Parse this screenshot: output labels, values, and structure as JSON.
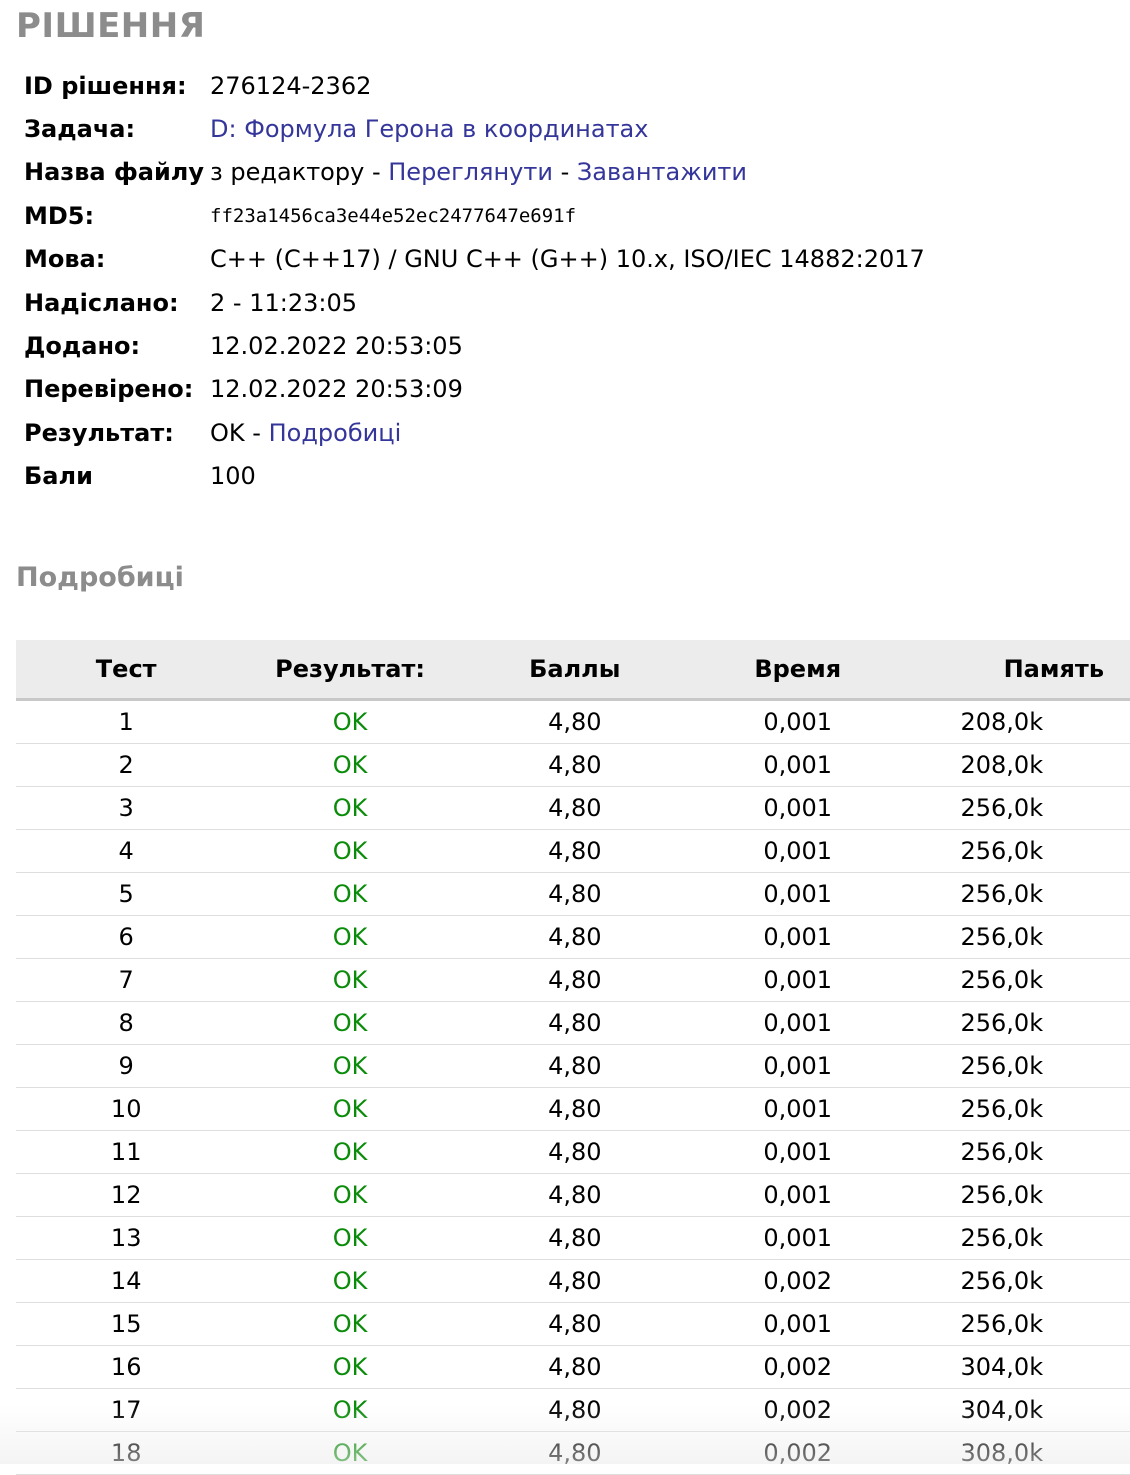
{
  "page_title": "РІШЕННЯ",
  "info": {
    "id_label": "ID рішення:",
    "id_value": "276124-2362",
    "task_label": "Задача:",
    "task_link": "D: Формула Герона в координатах",
    "file_label": "Назва файлу",
    "file_source": "з редактору",
    "separator": "-",
    "view_link": "Переглянути",
    "download_link": "Завантажити",
    "md5_label": "MD5:",
    "md5_value": "ff23a1456ca3e44e52ec2477647e691f",
    "lang_label": "Мова:",
    "lang_value": "C++ (C++17) / GNU C++ (G++) 10.x, ISO/IEC 14882:2017",
    "sent_label": "Надіслано:",
    "sent_value": "2 - 11:23:05",
    "added_label": "Додано:",
    "added_value": "12.02.2022 20:53:05",
    "checked_label": "Перевірено:",
    "checked_value": "12.02.2022 20:53:09",
    "result_label": "Результат:",
    "result_value": "OK",
    "details_link": "Подробиці",
    "score_label": "Бали",
    "score_value": "100"
  },
  "details_title": "Подробиці",
  "table": {
    "headers": [
      "Тест",
      "Результат:",
      "Баллы",
      "Время",
      "Память"
    ],
    "rows": [
      [
        "1",
        "OK",
        "4,80",
        "0,001",
        "208,0k"
      ],
      [
        "2",
        "OK",
        "4,80",
        "0,001",
        "208,0k"
      ],
      [
        "3",
        "OK",
        "4,80",
        "0,001",
        "256,0k"
      ],
      [
        "4",
        "OK",
        "4,80",
        "0,001",
        "256,0k"
      ],
      [
        "5",
        "OK",
        "4,80",
        "0,001",
        "256,0k"
      ],
      [
        "6",
        "OK",
        "4,80",
        "0,001",
        "256,0k"
      ],
      [
        "7",
        "OK",
        "4,80",
        "0,001",
        "256,0k"
      ],
      [
        "8",
        "OK",
        "4,80",
        "0,001",
        "256,0k"
      ],
      [
        "9",
        "OK",
        "4,80",
        "0,001",
        "256,0k"
      ],
      [
        "10",
        "OK",
        "4,80",
        "0,001",
        "256,0k"
      ],
      [
        "11",
        "OK",
        "4,80",
        "0,001",
        "256,0k"
      ],
      [
        "12",
        "OK",
        "4,80",
        "0,001",
        "256,0k"
      ],
      [
        "13",
        "OK",
        "4,80",
        "0,001",
        "256,0k"
      ],
      [
        "14",
        "OK",
        "4,80",
        "0,002",
        "256,0k"
      ],
      [
        "15",
        "OK",
        "4,80",
        "0,001",
        "256,0k"
      ],
      [
        "16",
        "OK",
        "4,80",
        "0,002",
        "304,0k"
      ],
      [
        "17",
        "OK",
        "4,80",
        "0,002",
        "304,0k"
      ],
      [
        "18",
        "OK",
        "4,80",
        "0,002",
        "308,0k"
      ]
    ]
  },
  "colors": {
    "heading_gray": "#8c8c8c",
    "link_blue": "#35369a",
    "ok_green": "#0a8c0a",
    "header_bg": "#ececec"
  }
}
